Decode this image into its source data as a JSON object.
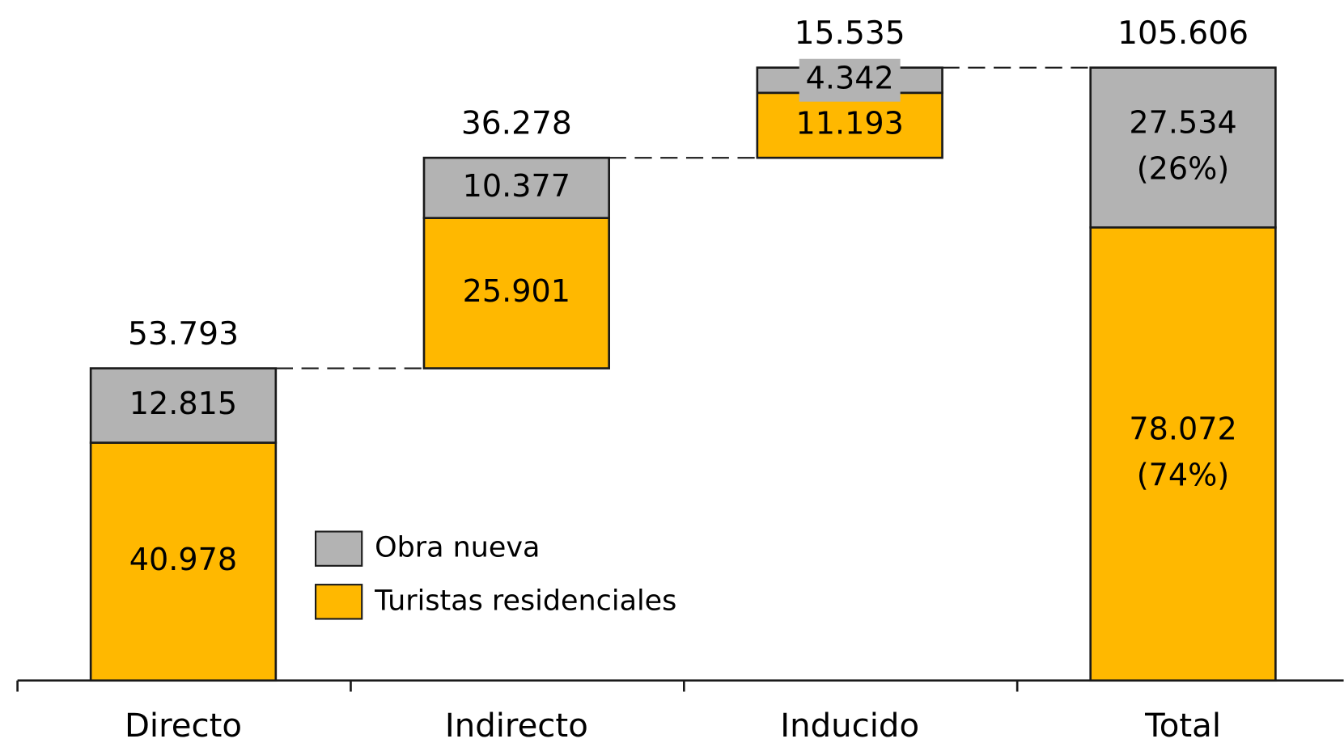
{
  "chart_data": {
    "type": "waterfall",
    "categories": [
      "Directo",
      "Indirecto",
      "Inducido",
      "Total"
    ],
    "series": [
      {
        "name": "Turistas residenciales",
        "color": "#ffb800",
        "values": [
          40978,
          25901,
          11193,
          78072
        ],
        "value_labels": [
          "40.978",
          "25.901",
          "11.193",
          "78.072"
        ],
        "share": 74,
        "share_label": "(74%)"
      },
      {
        "name": "Obra nueva",
        "color": "#b3b3b3",
        "values": [
          12815,
          10377,
          4342,
          27534
        ],
        "value_labels": [
          "12.815",
          "10.377",
          "4.342",
          "27.534"
        ],
        "share": 26,
        "share_label": "(26%)"
      }
    ],
    "totals": {
      "values": [
        53793,
        36278,
        15535,
        105606
      ],
      "value_labels": [
        "53.793",
        "36.278",
        "15.535",
        "105.606"
      ]
    }
  }
}
